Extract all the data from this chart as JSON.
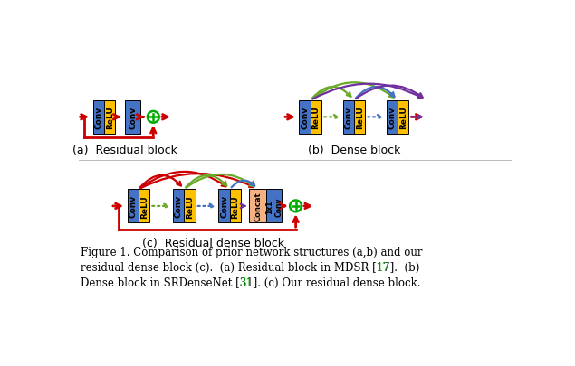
{
  "bg_color": "#ffffff",
  "title_a": "(a)  Residual block",
  "title_b": "(b)  Dense block",
  "title_c": "(c)  Residual dense block",
  "conv_blue": "#4472c4",
  "relu_yellow": "#ffc000",
  "concat_peach": "#f4b183",
  "arrow_red": "#cc0000",
  "arrow_green": "#6aaa28",
  "arrow_blue": "#4472c4",
  "arrow_purple": "#7030a0",
  "arc_red": "#cc0000",
  "circle_green": "#00aa00",
  "caption_color": "#00aa00"
}
